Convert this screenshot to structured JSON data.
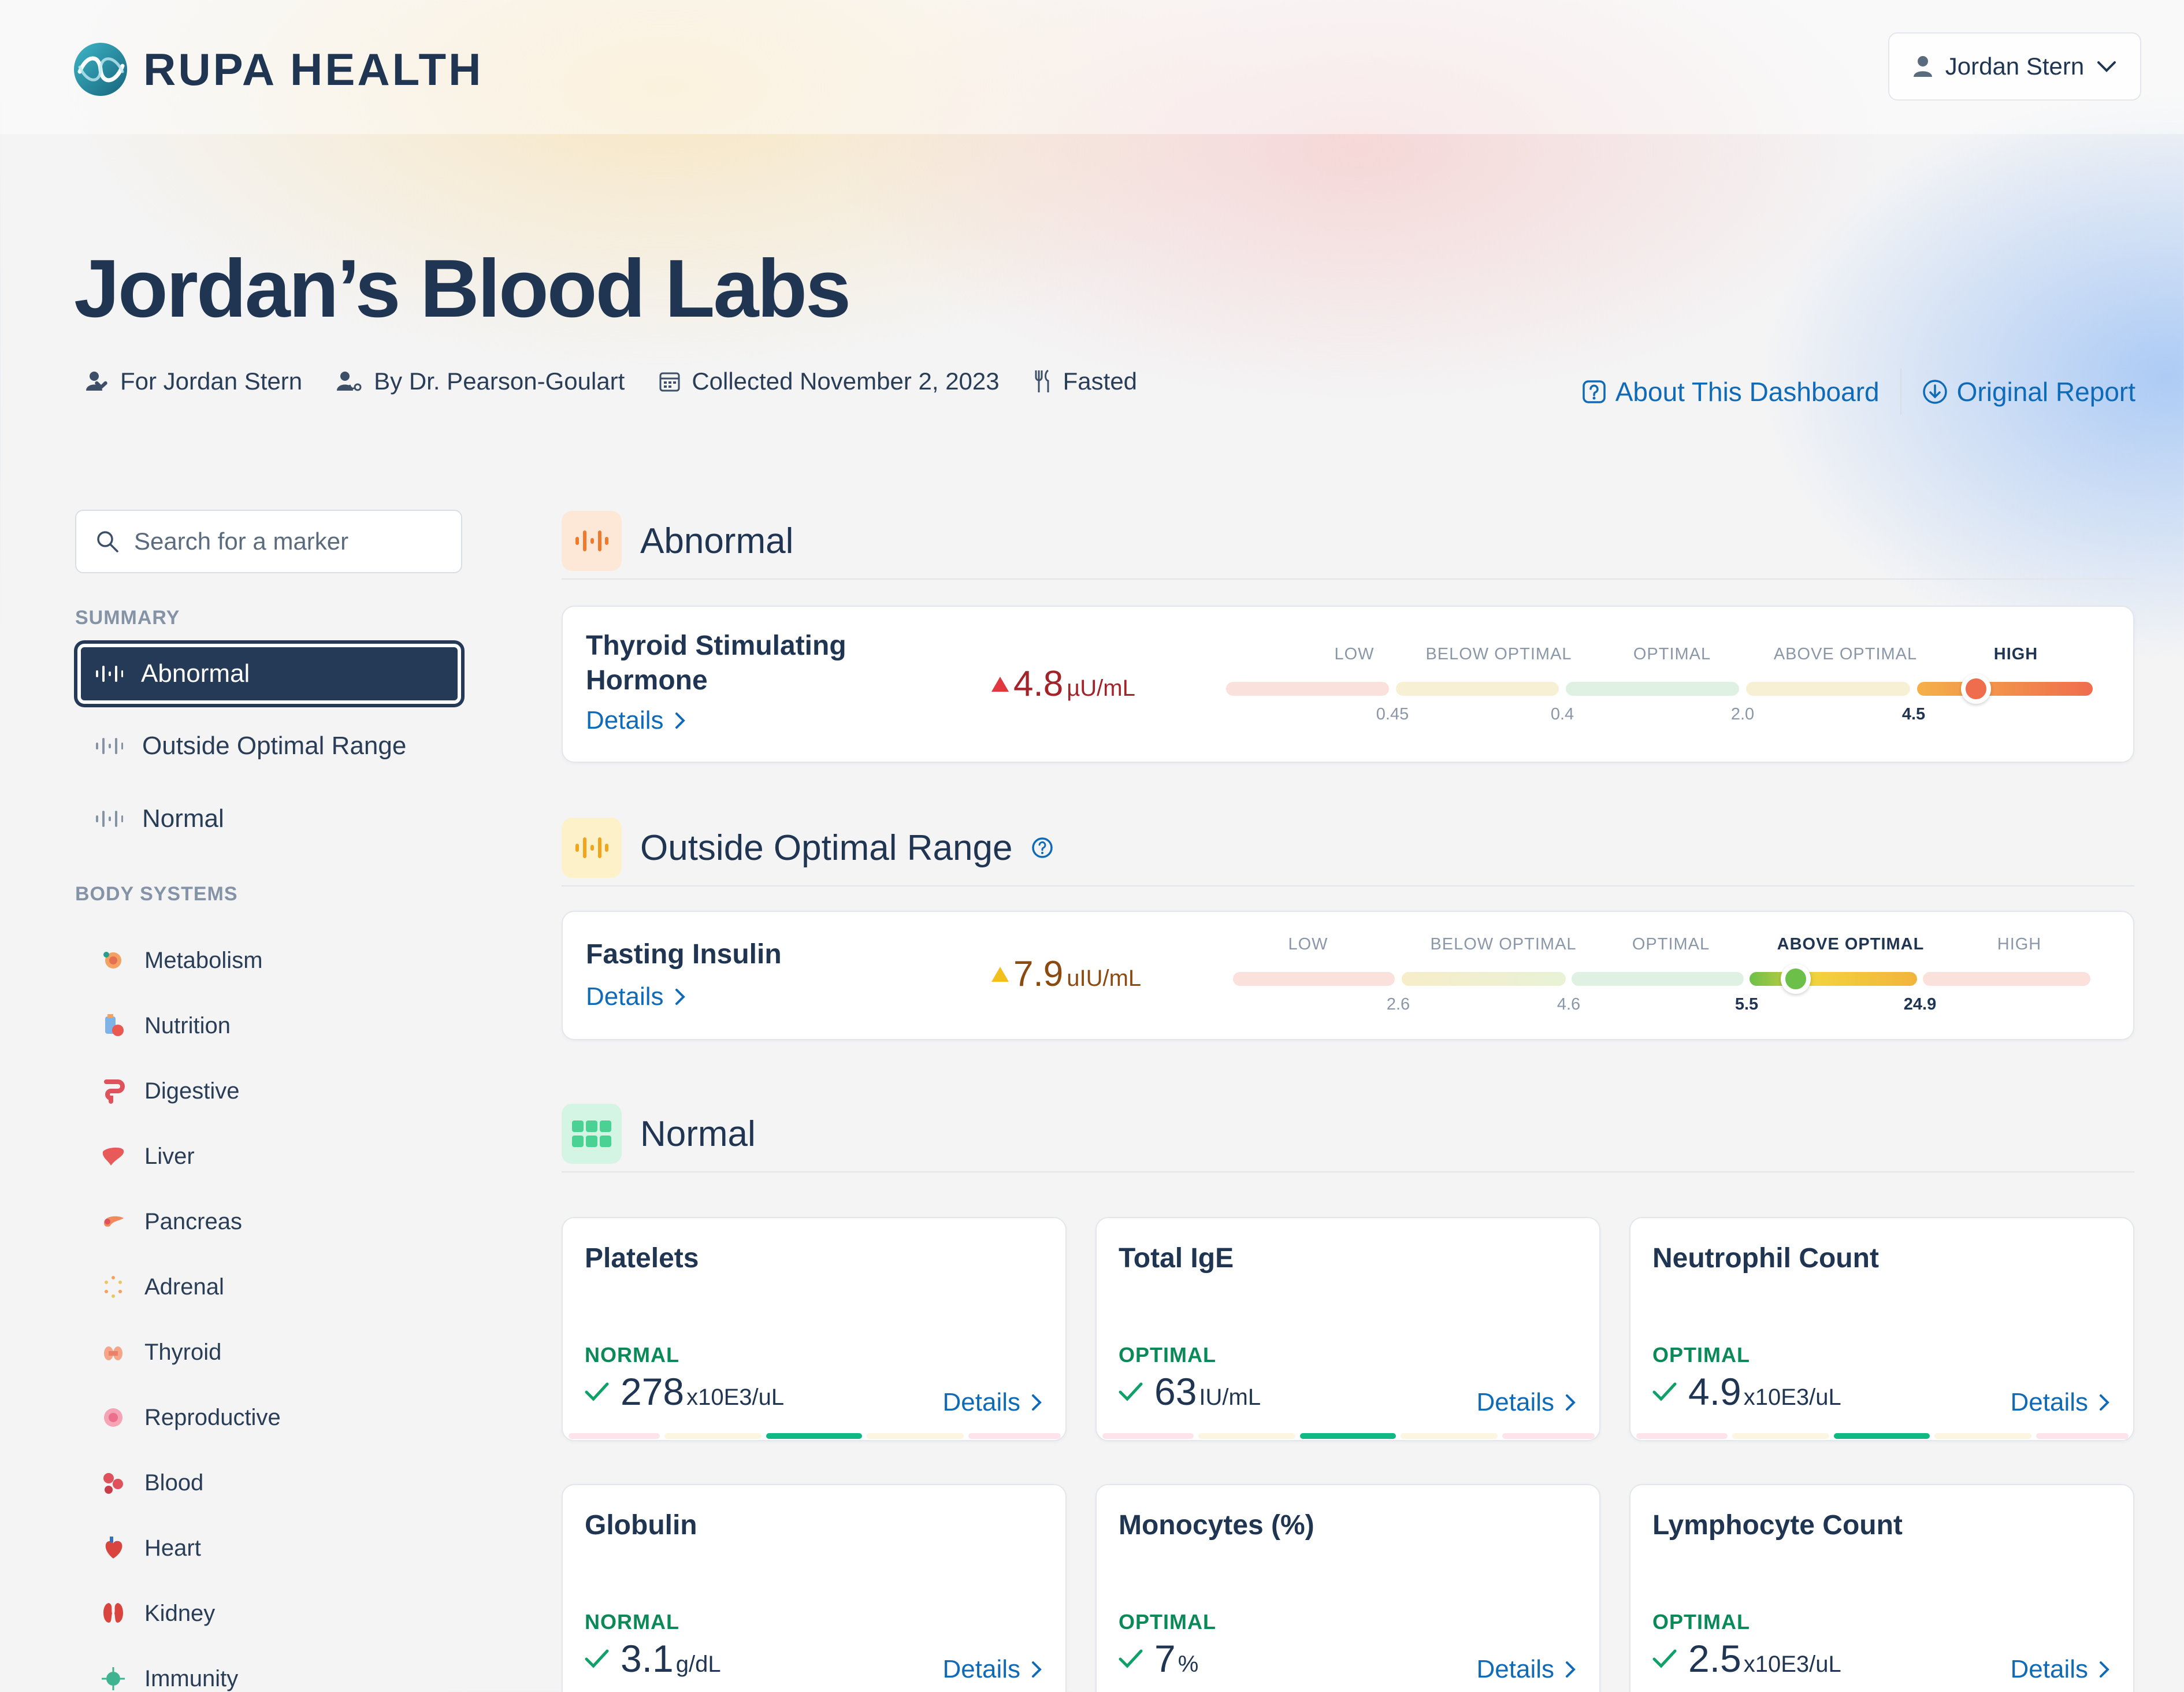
{
  "brand": {
    "name": "RUPA HEALTH"
  },
  "user_menu": {
    "name": "Jordan Stern"
  },
  "page": {
    "title": "Jordan’s Blood Labs",
    "meta": {
      "for": "For Jordan Stern",
      "by": "By Dr. Pearson-Goulart",
      "collected": "Collected November 2, 2023",
      "fasting": "Fasted"
    },
    "links": {
      "about": "About This Dashboard",
      "report": "Original Report"
    }
  },
  "sidebar": {
    "search_placeholder": "Search for a marker",
    "summary_heading": "SUMMARY",
    "summary_items": [
      "Abnormal",
      "Outside Optimal Range",
      "Normal"
    ],
    "systems_heading": "BODY SYSTEMS",
    "systems": [
      {
        "label": "Metabolism",
        "icon": "metabolism-icon"
      },
      {
        "label": "Nutrition",
        "icon": "nutrition-icon"
      },
      {
        "label": "Digestive",
        "icon": "digestive-icon"
      },
      {
        "label": "Liver",
        "icon": "liver-icon"
      },
      {
        "label": "Pancreas",
        "icon": "pancreas-icon"
      },
      {
        "label": "Adrenal",
        "icon": "adrenal-icon"
      },
      {
        "label": "Thyroid",
        "icon": "thyroid-icon"
      },
      {
        "label": "Reproductive",
        "icon": "reproductive-icon"
      },
      {
        "label": "Blood",
        "icon": "blood-icon"
      },
      {
        "label": "Heart",
        "icon": "heart-icon"
      },
      {
        "label": "Kidney",
        "icon": "kidney-icon"
      },
      {
        "label": "Immunity",
        "icon": "immunity-icon"
      }
    ]
  },
  "sections": {
    "abnormal": {
      "title": "Abnormal",
      "marker": {
        "name_line1": "Thyroid Stimulating",
        "name_line2": "Hormone",
        "details": "Details",
        "value": "4.8",
        "unit": "µU/mL",
        "range_labels": [
          "LOW",
          "BELOW OPTIMAL",
          "OPTIMAL",
          "ABOVE OPTIMAL",
          "HIGH"
        ],
        "ticks": [
          "0.45",
          "0.4",
          "2.0",
          "4.5"
        ]
      }
    },
    "outside": {
      "title": "Outside Optimal Range",
      "marker": {
        "name": "Fasting Insulin",
        "details": "Details",
        "value": "7.9",
        "unit": "uIU/mL",
        "range_labels": [
          "LOW",
          "BELOW OPTIMAL",
          "OPTIMAL",
          "ABOVE OPTIMAL",
          "HIGH"
        ],
        "ticks": [
          "2.6",
          "4.6",
          "5.5",
          "24.9"
        ]
      }
    },
    "normal": {
      "title": "Normal",
      "cards": [
        {
          "name": "Platelets",
          "status": "NORMAL",
          "value": "278",
          "unit": "x10E3/uL",
          "details": "Details"
        },
        {
          "name": "Total IgE",
          "status": "OPTIMAL",
          "value": "63",
          "unit": "IU/mL",
          "details": "Details"
        },
        {
          "name": "Neutrophil Count",
          "status": "OPTIMAL",
          "value": "4.9",
          "unit": "x10E3/uL",
          "details": "Details"
        },
        {
          "name": "Globulin",
          "status": "NORMAL",
          "value": "3.1",
          "unit": "g/dL",
          "details": "Details"
        },
        {
          "name": "Monocytes (%)",
          "status": "OPTIMAL",
          "value": "7",
          "unit": "%",
          "details": "Details"
        },
        {
          "name": "Lymphocyte Count",
          "status": "OPTIMAL",
          "value": "2.5",
          "unit": "x10E3/uL",
          "details": "Details"
        }
      ]
    }
  },
  "colors": {
    "navy": "#1f3552",
    "link": "#0f6ab8",
    "high": "#d9343a",
    "above_optimal": "#f2a93b",
    "optimal_green": "#10b981"
  }
}
